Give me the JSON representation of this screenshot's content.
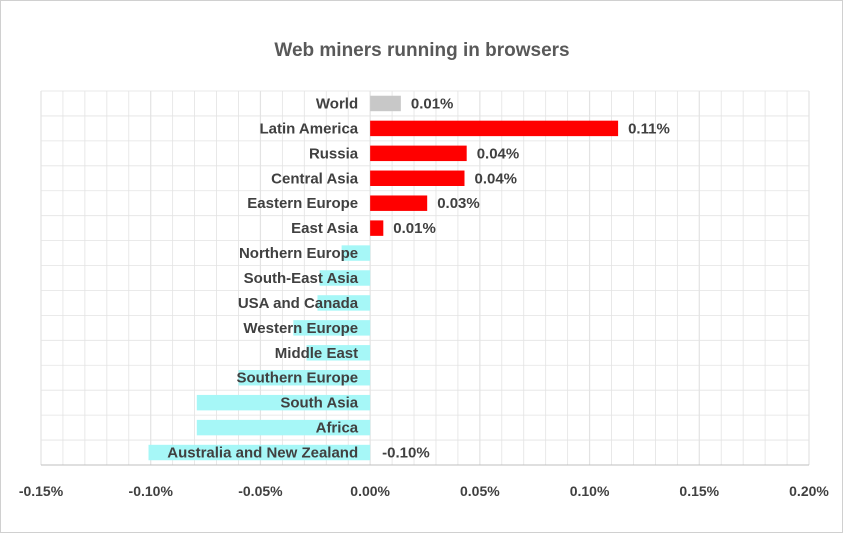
{
  "chart_data": {
    "type": "bar",
    "orientation": "horizontal",
    "title": "Web miners running in browsers",
    "xlabel": "",
    "ylabel": "",
    "xlim": [
      -0.15,
      0.2
    ],
    "xticks": [
      "-0.15%",
      "-0.10%",
      "-0.05%",
      "0.00%",
      "0.05%",
      "0.10%",
      "0.15%",
      "0.20%"
    ],
    "xtick_values": [
      -0.15,
      -0.1,
      -0.05,
      0.0,
      0.05,
      0.1,
      0.15,
      0.2
    ],
    "grid": true,
    "legend": "none",
    "categories": [
      "World",
      "Latin America",
      "Russia",
      "Central Asia",
      "Eastern Europe",
      "East Asia",
      "Northern Europe",
      "South-East Asia",
      "USA and Canada",
      "Western Europe",
      "Middle East",
      "Southern Europe",
      "South Asia",
      "Africa",
      "Australia and New Zealand"
    ],
    "values": [
      0.014,
      0.113,
      0.044,
      0.043,
      0.026,
      0.006,
      -0.013,
      -0.023,
      -0.024,
      -0.035,
      -0.029,
      -0.06,
      -0.079,
      -0.079,
      -0.101
    ],
    "data_labels": [
      "0.01%",
      "0.11%",
      "0.04%",
      "0.04%",
      "0.03%",
      "0.01%",
      "",
      "",
      "",
      "",
      "",
      "",
      "",
      "",
      "-0.10%"
    ],
    "colors": {
      "world": "#c8c8c8",
      "positive": "#ff0000",
      "negative": "#a6f7f7",
      "grid": "#e3e3e3",
      "axis": "#bfbfbf"
    }
  }
}
